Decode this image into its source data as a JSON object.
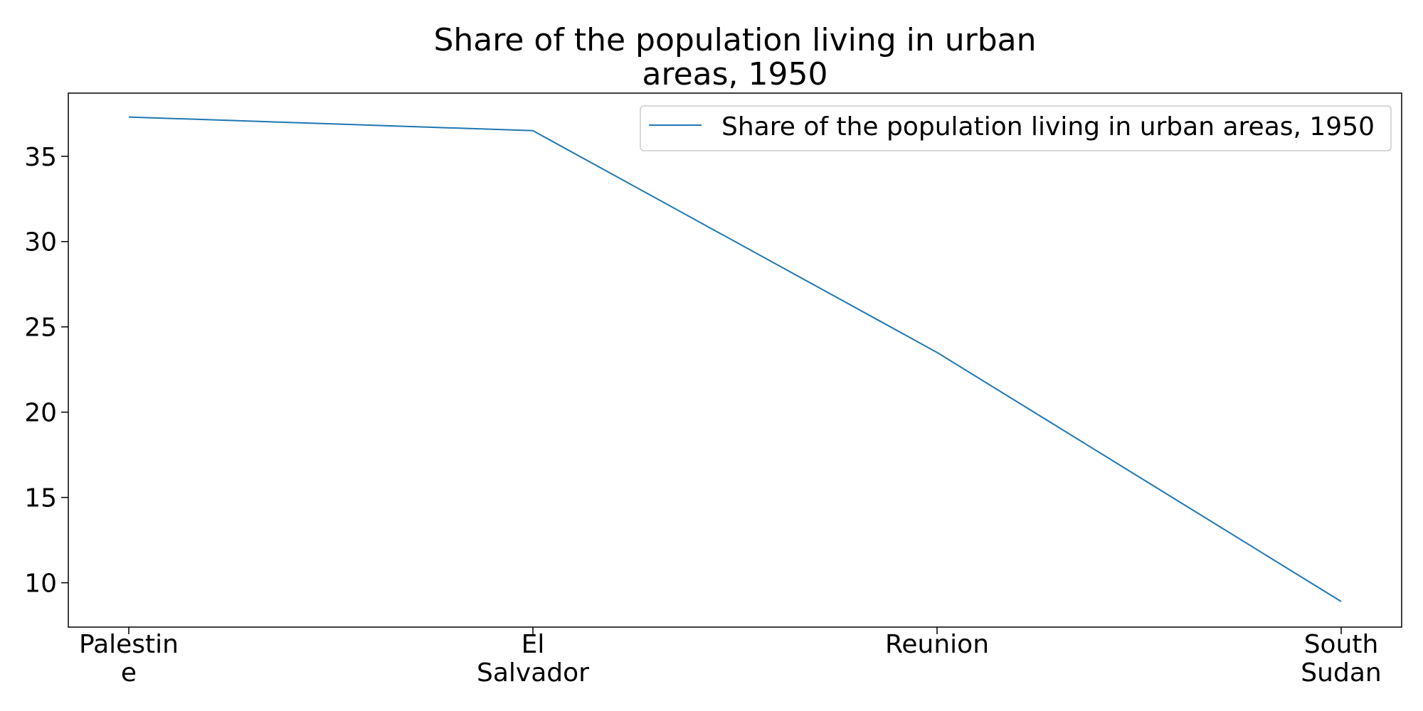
{
  "chart_data": {
    "type": "line",
    "title_lines": [
      "Share of the population living in urban",
      "areas, 1950"
    ],
    "categories": [
      "Palestine",
      "El Salvador",
      "Reunion",
      "South Sudan"
    ],
    "category_label_lines": [
      [
        "Palestin",
        "e"
      ],
      [
        "El",
        "Salvador"
      ],
      [
        "Reunion"
      ],
      [
        "South",
        "Sudan"
      ]
    ],
    "series": [
      {
        "name": "Share of the population living in urban areas, 1950",
        "values": [
          37.3,
          36.5,
          23.5,
          8.9
        ],
        "color": "#1f77b4"
      }
    ],
    "xlabel": "",
    "ylabel": "",
    "ylim": [
      7.4,
      38.7
    ],
    "yticks": [
      10,
      15,
      20,
      25,
      30,
      35
    ],
    "grid": false,
    "legend_position": "top-right"
  }
}
